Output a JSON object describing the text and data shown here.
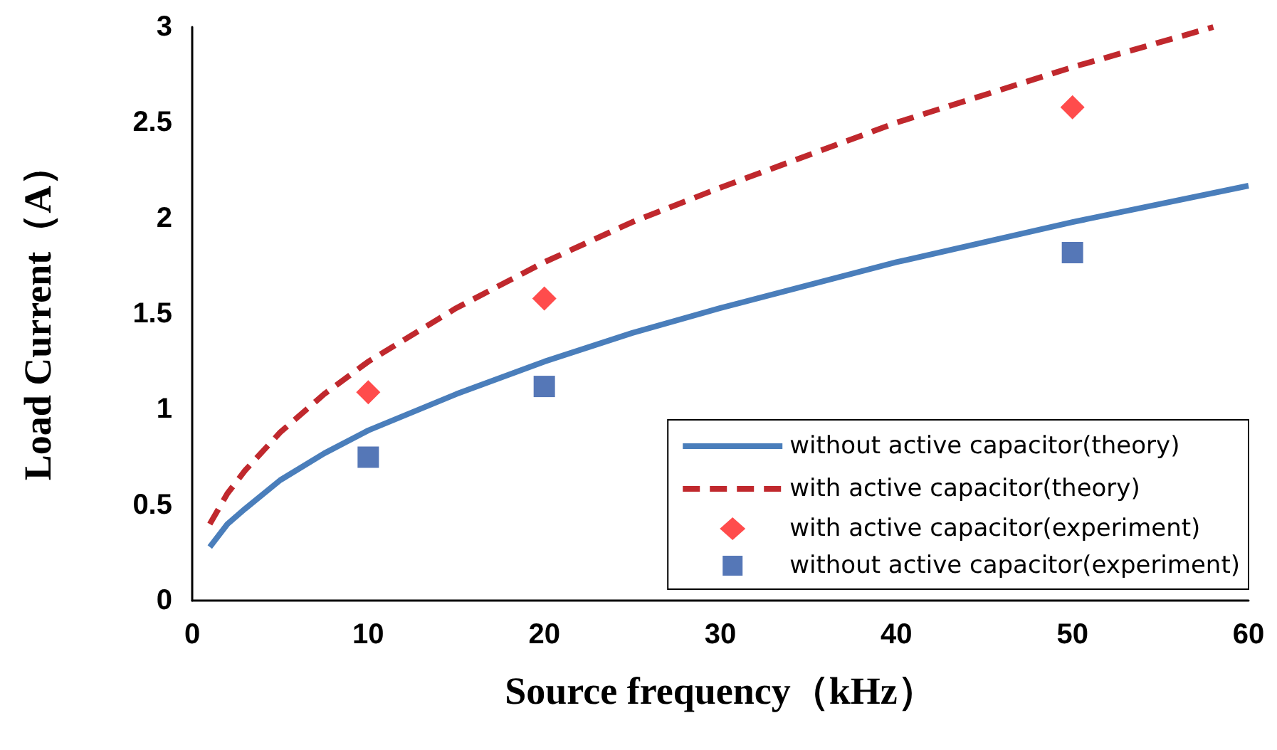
{
  "chart_data": {
    "type": "line",
    "xlabel": "Source frequency（kHz）",
    "ylabel": "Load Current（A）",
    "xlim": [
      0,
      60
    ],
    "xticks": [
      0,
      10,
      20,
      30,
      40,
      50,
      60
    ],
    "ylim": [
      0,
      3
    ],
    "yticks": [
      0,
      0.5,
      1,
      1.5,
      2,
      2.5,
      3
    ],
    "grid": false,
    "legend": "bottom right",
    "series": [
      {
        "name": "without active capacitor(theory)",
        "type": "line",
        "line_style": "solid",
        "marker": "none",
        "color": "#4a7ebb",
        "x": [
          1,
          2,
          3,
          5,
          7.5,
          10,
          15,
          20,
          25,
          30,
          40,
          50,
          60
        ],
        "values": [
          0.28,
          0.4,
          0.48,
          0.63,
          0.77,
          0.89,
          1.08,
          1.25,
          1.4,
          1.53,
          1.77,
          1.98,
          2.17
        ]
      },
      {
        "name": "with active capacitor(theory)",
        "type": "line",
        "line_style": "dashed",
        "marker": "none",
        "color": "#c0282d",
        "x": [
          1,
          2,
          3,
          5,
          7.5,
          10,
          15,
          20,
          25,
          30,
          40,
          50,
          58
        ],
        "values": [
          0.4,
          0.56,
          0.68,
          0.88,
          1.08,
          1.25,
          1.53,
          1.77,
          1.98,
          2.16,
          2.5,
          2.79,
          3.0
        ]
      },
      {
        "name": "with active capacitor(experiment)",
        "type": "scatter",
        "marker": "diamond",
        "color": "#ff1f1f",
        "x": [
          10,
          20,
          50
        ],
        "values": [
          1.09,
          1.58,
          2.58
        ]
      },
      {
        "name": "without active capacitor(experiment)",
        "type": "scatter",
        "marker": "square",
        "color": "#2a55a5",
        "x": [
          10,
          20,
          50
        ],
        "values": [
          0.75,
          1.12,
          1.82
        ]
      }
    ]
  }
}
